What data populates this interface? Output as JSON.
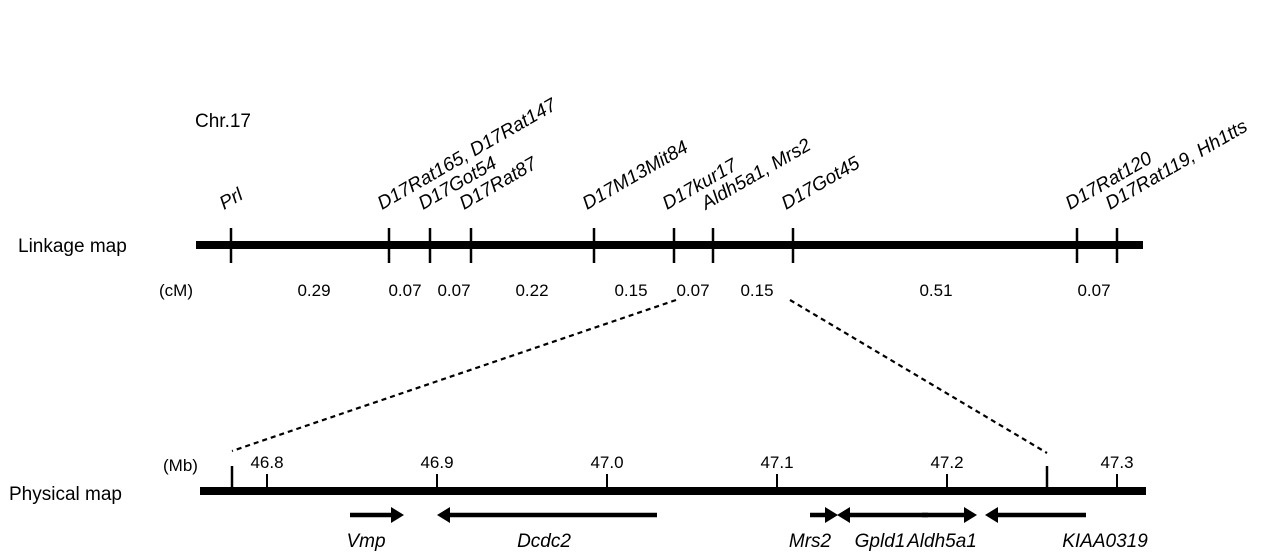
{
  "chromosome_label": "Chr.17",
  "linkage_map": {
    "label": "Linkage map",
    "unit_label": "(cM)",
    "markers": [
      {
        "name": "Prl"
      },
      {
        "name": "D17Rat165, D17Rat147"
      },
      {
        "name": "D17Got54"
      },
      {
        "name": "D17Rat87"
      },
      {
        "name": "D17M13Mit84"
      },
      {
        "name": "D17kur17"
      },
      {
        "name": "Aldh5a1, Mrs2"
      },
      {
        "name": "D17Got45"
      },
      {
        "name": "D17Rat120"
      },
      {
        "name": "D17Rat119, Hh1tts"
      }
    ],
    "intervals": [
      "0.29",
      "0.07",
      "0.07",
      "0.22",
      "0.15",
      "0.07",
      "0.15",
      "0.51",
      "0.07"
    ]
  },
  "physical_map": {
    "label": "Physical map",
    "unit_label": "(Mb)",
    "ticks": [
      "46.8",
      "46.9",
      "47.0",
      "47.1",
      "47.2",
      "47.3"
    ],
    "genes": [
      {
        "name": "Vmp",
        "direction": "right"
      },
      {
        "name": "Dcdc2",
        "direction": "left"
      },
      {
        "name": "Mrs2",
        "direction": "right"
      },
      {
        "name": "Gpld1",
        "direction": "left"
      },
      {
        "name": "Aldh5a1",
        "direction": "right"
      },
      {
        "name": "KIAA0319",
        "direction": "left"
      }
    ]
  }
}
